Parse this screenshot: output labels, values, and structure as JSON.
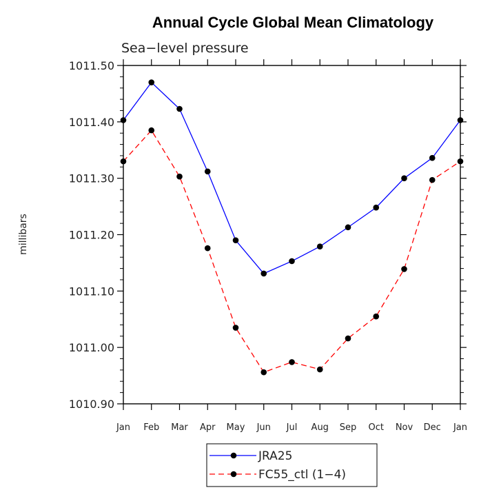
{
  "chart_data": {
    "type": "line",
    "title": "Annual Cycle Global Mean Climatology",
    "subtitle": "Sea−level pressure",
    "xlabel": "",
    "ylabel": "millibars",
    "categories": [
      "Jan",
      "Feb",
      "Mar",
      "Apr",
      "May",
      "Jun",
      "Jul",
      "Aug",
      "Sep",
      "Oct",
      "Nov",
      "Dec",
      "Jan"
    ],
    "ylim": [
      1010.9,
      1011.5
    ],
    "yticks": [
      "1010.90",
      "1011.00",
      "1011.10",
      "1011.20",
      "1011.30",
      "1011.40",
      "1011.50"
    ],
    "yticks_values": [
      1010.9,
      1011.0,
      1011.1,
      1011.2,
      1011.3,
      1011.4,
      1011.5
    ],
    "series": [
      {
        "name": "JRA25",
        "color": "#0000ff",
        "dash": "solid",
        "values": [
          1011.403,
          1011.47,
          1011.423,
          1011.312,
          1011.19,
          1011.131,
          1011.153,
          1011.179,
          1011.213,
          1011.248,
          1011.3,
          1011.336,
          1011.403
        ]
      },
      {
        "name": "FC55_ctl (1−4)",
        "color": "#ff0000",
        "dash": "dashed",
        "values": [
          1011.33,
          1011.385,
          1011.303,
          1011.176,
          1011.035,
          1010.956,
          1010.974,
          1010.961,
          1011.016,
          1011.055,
          1011.139,
          1011.297,
          1011.33
        ]
      }
    ],
    "legend_position": "bottom"
  }
}
